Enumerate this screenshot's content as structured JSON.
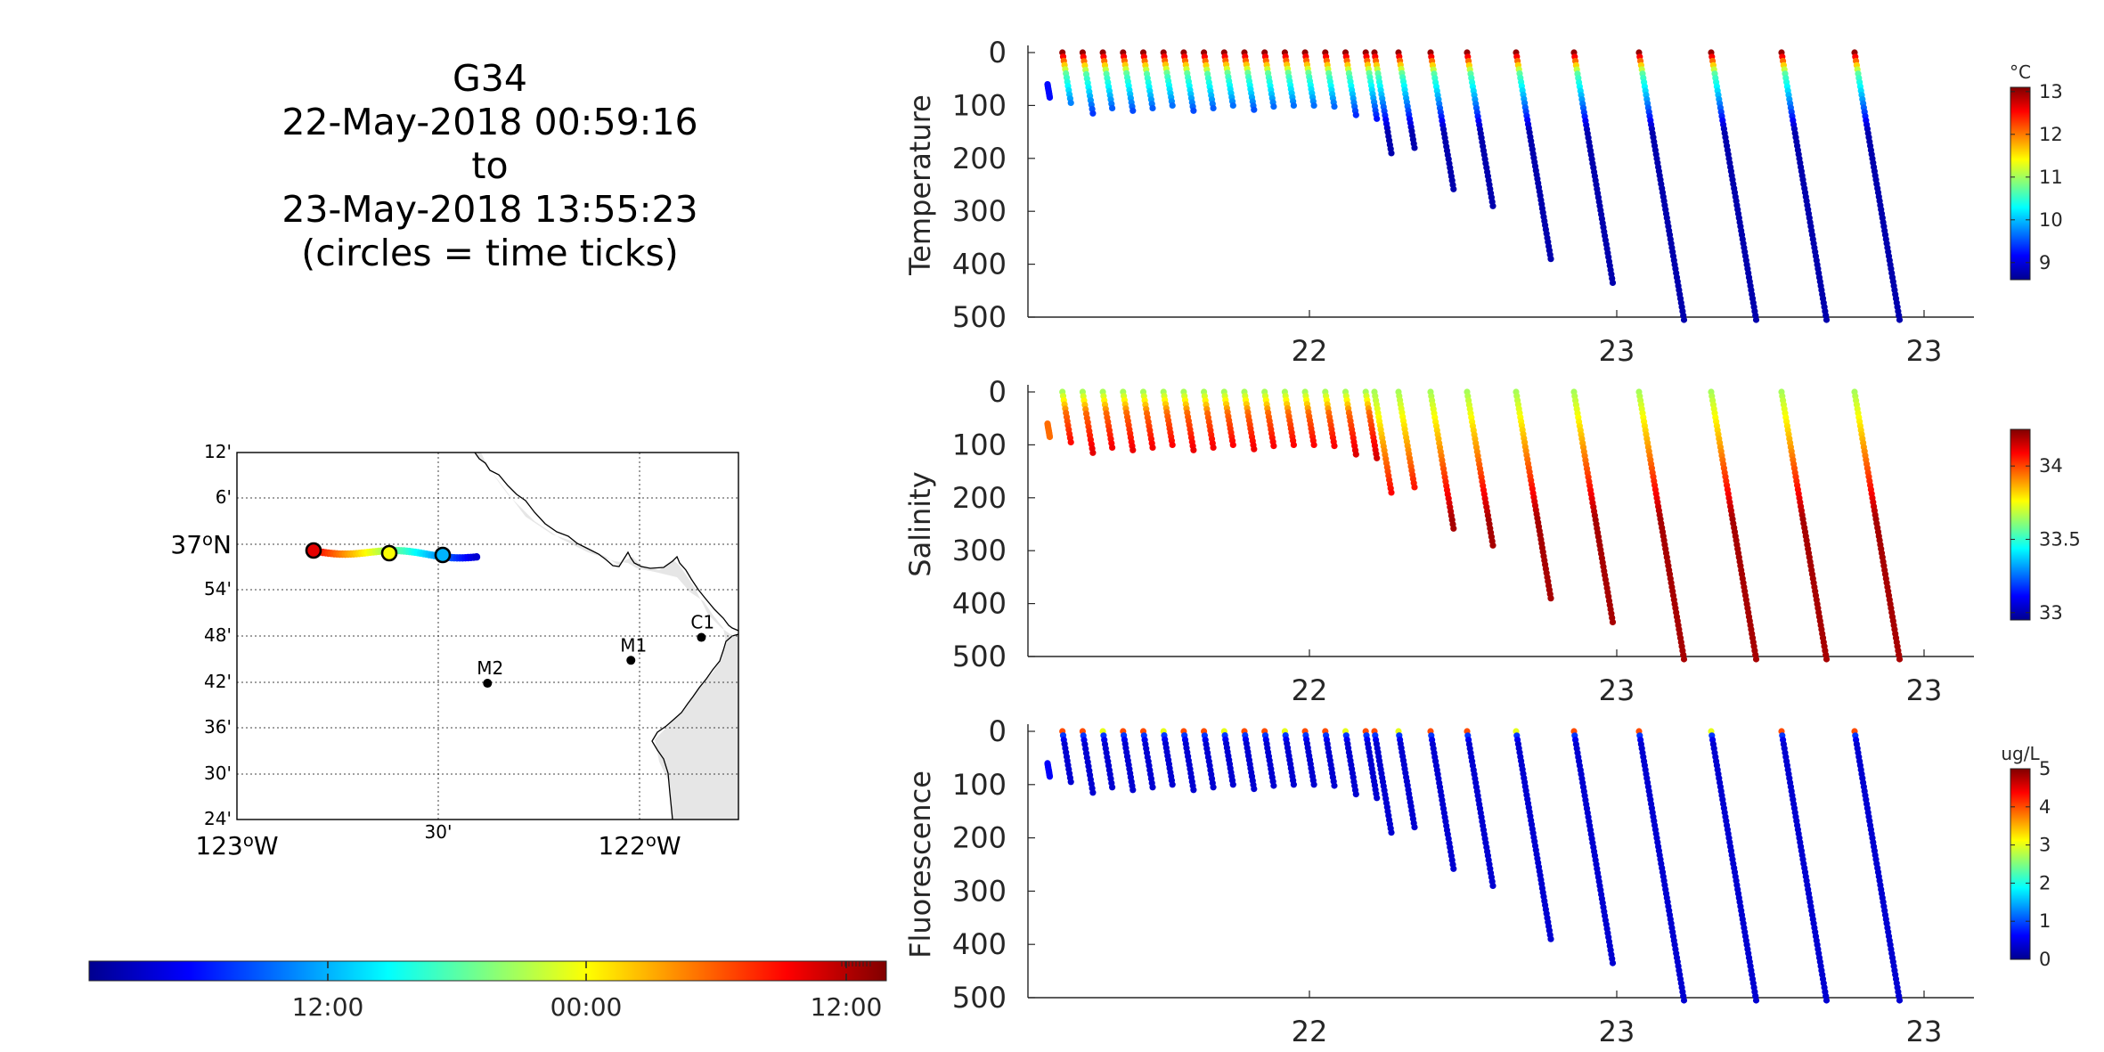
{
  "title": {
    "glider": "G34",
    "start": "22-May-2018 00:59:16",
    "to": "to",
    "end": "23-May-2018 13:55:23",
    "note": "(circles = time ticks)"
  },
  "map": {
    "lat_ticks": [
      "12'",
      "6'",
      "37°N",
      "54'",
      "48'",
      "42'",
      "36'",
      "30'",
      "24'"
    ],
    "lon_ticks": [
      "123°W",
      "30'",
      "122°W"
    ],
    "stations": [
      {
        "name": "C1",
        "lat": 36.797,
        "lon": -121.847
      },
      {
        "name": "M1",
        "lat": 36.747,
        "lon": -122.022
      },
      {
        "name": "M2",
        "lat": 36.697,
        "lon": -122.378
      }
    ],
    "land_color": "#e6e6e6"
  },
  "time_colorbar": {
    "tick_labels": [
      "12:00",
      "00:00",
      "12:00"
    ],
    "colormap": "jet"
  },
  "chart_data": [
    {
      "type": "scatter",
      "title": "",
      "ylabel": "Temperature",
      "xlabel": "",
      "x_tick_labels": [
        "22",
        "23",
        "23"
      ],
      "y_tick_labels": [
        "0",
        "100",
        "200",
        "300",
        "400",
        "500"
      ],
      "ylim": [
        500,
        0
      ],
      "y_reversed": true,
      "colorbar": {
        "unit": "°C",
        "ticks": [
          "9",
          "10",
          "11",
          "12",
          "13"
        ],
        "range": [
          8.6,
          13.1
        ],
        "colormap": "jet"
      },
      "profile_max_depth": [
        85,
        95,
        115,
        105,
        110,
        105,
        100,
        110,
        105,
        100,
        108,
        102,
        100,
        100,
        102,
        118,
        125,
        190,
        180,
        258,
        290,
        390,
        435,
        505,
        505,
        505,
        505
      ],
      "surface_value": 13.0,
      "deep_value": 8.8,
      "mixed_layer_depth_m": 40
    },
    {
      "type": "scatter",
      "title": "",
      "ylabel": "Salinity",
      "xlabel": "",
      "x_tick_labels": [
        "22",
        "23",
        "23"
      ],
      "y_tick_labels": [
        "0",
        "100",
        "200",
        "300",
        "400",
        "500"
      ],
      "ylim": [
        500,
        0
      ],
      "y_reversed": true,
      "colorbar": {
        "unit": "",
        "ticks": [
          "33",
          "33.5",
          "34"
        ],
        "range": [
          32.95,
          34.25
        ],
        "colormap": "jet"
      },
      "profile_max_depth": [
        85,
        95,
        115,
        105,
        110,
        105,
        100,
        110,
        105,
        100,
        108,
        102,
        100,
        100,
        102,
        118,
        125,
        190,
        180,
        258,
        290,
        390,
        435,
        505,
        505,
        505,
        505
      ],
      "surface_value": 33.65,
      "deep_value": 34.2,
      "mixed_layer_depth_m": 40
    },
    {
      "type": "scatter",
      "title": "",
      "ylabel": "Fluorescence",
      "xlabel": "",
      "x_tick_labels": [
        "22",
        "23",
        "23"
      ],
      "y_tick_labels": [
        "0",
        "100",
        "200",
        "300",
        "400",
        "500"
      ],
      "ylim": [
        500,
        0
      ],
      "y_reversed": true,
      "colorbar": {
        "unit": "ug/L",
        "ticks": [
          "0",
          "1",
          "2",
          "3",
          "4",
          "5"
        ],
        "range": [
          0,
          5
        ],
        "colormap": "jet"
      },
      "profile_max_depth": [
        85,
        95,
        115,
        105,
        110,
        105,
        100,
        110,
        105,
        100,
        108,
        102,
        100,
        100,
        102,
        118,
        125,
        190,
        180,
        258,
        290,
        390,
        435,
        505,
        505,
        505,
        505
      ],
      "surface_value": 4.0,
      "deep_value": 0.4,
      "mixed_layer_depth_m": 20
    }
  ]
}
